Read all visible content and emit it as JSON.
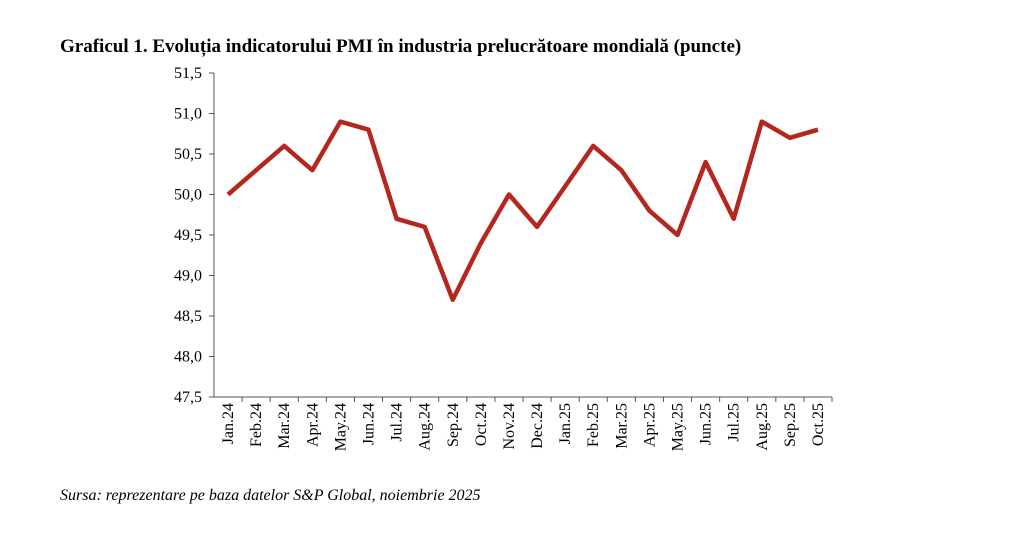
{
  "chart_data": {
    "type": "line",
    "title": "Graficul 1. Evoluția indicatorului PMI în industria prelucrătoare mondială (puncte)",
    "source": "Sursa: reprezentare pe baza datelor S&P Global, noiembrie 2025",
    "categories": [
      "Jan.24",
      "Feb.24",
      "Mar.24",
      "Apr.24",
      "May.24",
      "Jun.24",
      "Jul.24",
      "Aug.24",
      "Sep.24",
      "Oct.24",
      "Nov.24",
      "Dec.24",
      "Jan.25",
      "Feb.25",
      "Mar.25",
      "Apr.25",
      "May.25",
      "Jun.25",
      "Jul.25",
      "Aug.25",
      "Sep.25",
      "Oct.25"
    ],
    "series": [
      {
        "color": "#b5261e",
        "values": [
          50.0,
          50.3,
          50.6,
          50.3,
          50.9,
          50.8,
          49.7,
          49.6,
          48.7,
          49.4,
          50.0,
          49.6,
          50.1,
          50.6,
          50.3,
          49.8,
          49.5,
          50.4,
          49.7,
          50.9,
          50.7,
          50.8
        ]
      }
    ],
    "ylim": [
      47.5,
      51.5
    ],
    "yticks": [
      {
        "value": 47.5,
        "label": "47,5"
      },
      {
        "value": 48,
        "label": "48,0"
      },
      {
        "value": 48.5,
        "label": "48,5"
      },
      {
        "value": 49,
        "label": "49,0"
      },
      {
        "value": 49.5,
        "label": "49,5"
      },
      {
        "value": 50,
        "label": "50,0"
      },
      {
        "value": 50.5,
        "label": "50,5"
      },
      {
        "value": 51,
        "label": "51,0"
      },
      {
        "value": 51.5,
        "label": "51,5"
      }
    ],
    "grid": false
  }
}
